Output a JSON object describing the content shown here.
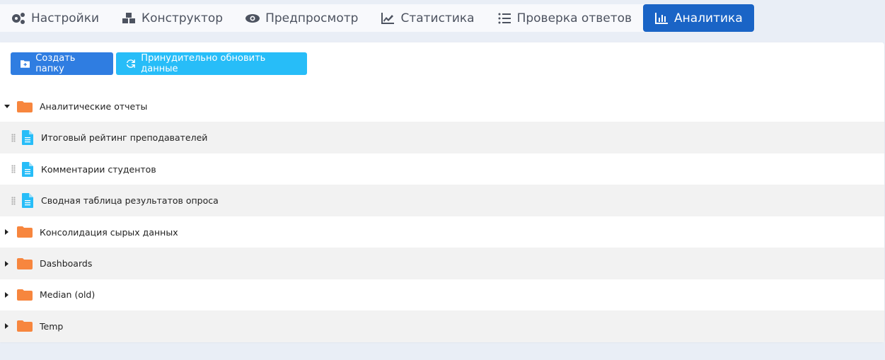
{
  "tabs": [
    {
      "label": "Настройки",
      "icon": "gears-icon"
    },
    {
      "label": "Конструктор",
      "icon": "cubes-icon"
    },
    {
      "label": "Предпросмотр",
      "icon": "eye-icon"
    },
    {
      "label": "Статистика",
      "icon": "line-chart-icon"
    },
    {
      "label": "Проверка ответов",
      "icon": "checklist-icon"
    },
    {
      "label": "Аналитика",
      "icon": "bar-chart-icon",
      "active": true
    }
  ],
  "toolbar": {
    "create_folder": "Создать папку",
    "force_refresh": "Принудительно обновить данные"
  },
  "tree": [
    {
      "type": "folder",
      "label": "Аналитические отчеты",
      "expanded": true
    },
    {
      "type": "report",
      "label": "Итоговый рейтинг преподавателей"
    },
    {
      "type": "report",
      "label": "Комментарии студентов"
    },
    {
      "type": "report",
      "label": "Сводная таблица результатов опроса"
    },
    {
      "type": "folder",
      "label": "Консолидация сырых данных",
      "expanded": false
    },
    {
      "type": "folder",
      "label": "Dashboards",
      "expanded": false
    },
    {
      "type": "folder",
      "label": "Median (old)",
      "expanded": false
    },
    {
      "type": "folder",
      "label": "Temp",
      "expanded": false
    }
  ],
  "colors": {
    "active_tab": "#1a64c6",
    "primary": "#2f7de1",
    "info": "#27bdf8",
    "folder": "#f7863e",
    "file": "#27bdf8"
  }
}
